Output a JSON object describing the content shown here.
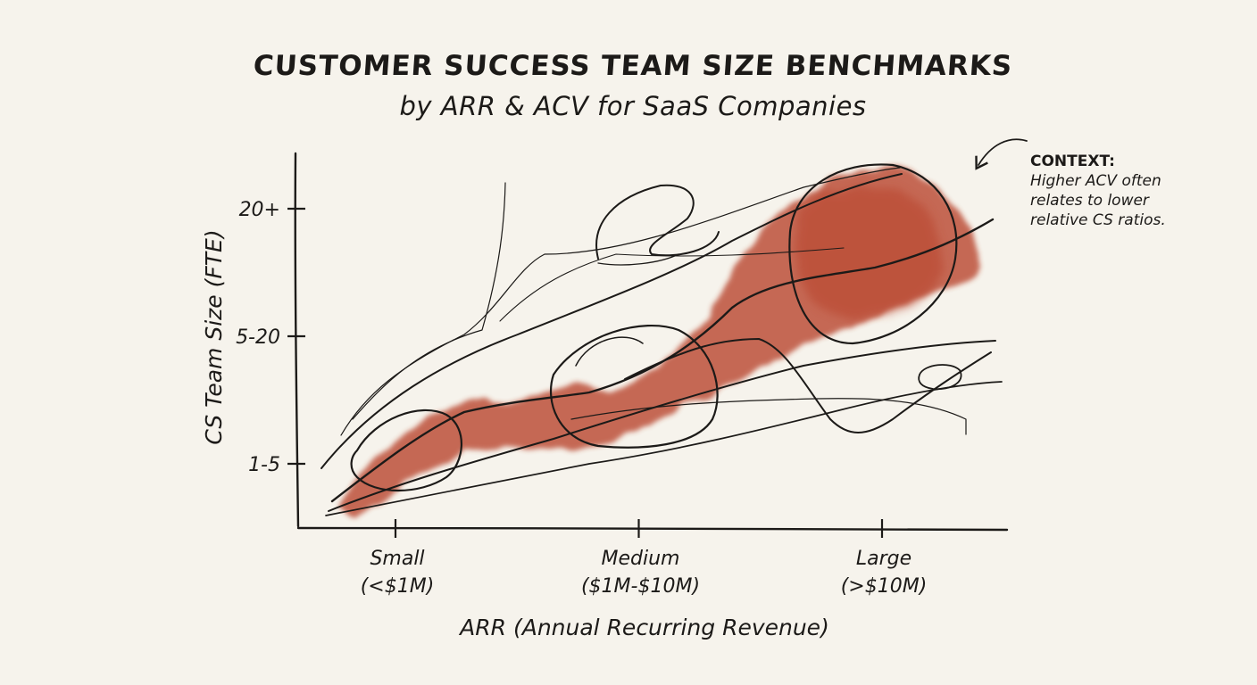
{
  "chart_data": {
    "type": "area",
    "title": "CUSTOMER SUCCESS TEAM SIZE BENCHMARKS",
    "subtitle": "by ARR & ACV for SaaS Companies",
    "xlabel": "ARR (Annual Recurring Revenue)",
    "ylabel": "CS Team Size (FTE)",
    "categories": [
      {
        "name": "Small",
        "range": "(<$1M)"
      },
      {
        "name": "Medium",
        "range": "($1M-$10M)"
      },
      {
        "name": "Large",
        "range": "(>$10M)"
      }
    ],
    "y_ticks": [
      "1-5",
      "5-20",
      "20+"
    ],
    "grid": false,
    "band_color": "#b8432b",
    "annotation": {
      "title": "CONTEXT:",
      "text": "Higher ACV often relates to lower relative CS ratios."
    }
  }
}
